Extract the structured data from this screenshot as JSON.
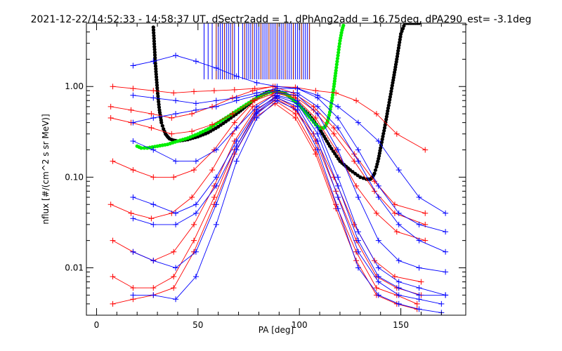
{
  "chart_data": {
    "type": "line",
    "title": "2021-12-22/14:52:33 - 14:58:37 UT, dSectr2add = 1, dPhAng2add = 16.75deg, dPA290_est=  -3.1deg",
    "xlabel": "PA [deg]",
    "ylabel": "nflux [#/(cm^2 s sr MeV)]",
    "xlim": [
      -5,
      182
    ],
    "ylim": [
      0.003,
      5
    ],
    "yscale": "log",
    "x_ticks": [
      0,
      50,
      100,
      150
    ],
    "x_tick_labels": [
      "0",
      "50",
      "100",
      "150"
    ],
    "y_ticks": [
      0.01,
      0.1,
      1.0
    ],
    "y_tick_labels": [
      "0.01",
      "0.10",
      "1.00"
    ],
    "grid": false,
    "colors": {
      "series_a": "#ff0000",
      "series_b": "#0000ff",
      "fit_black": "#000000",
      "fit_green": "#00ee00"
    },
    "vertical_markers": {
      "color_primary": "#0000ff",
      "color_secondary": "#8b0000",
      "y_from": 1.2,
      "y_to": 5,
      "x": [
        53,
        55,
        57,
        59,
        60,
        61,
        62,
        63,
        64,
        65,
        66,
        67,
        68,
        70,
        72,
        73,
        74,
        75,
        76,
        77,
        78,
        79,
        80,
        81,
        82,
        83,
        84,
        85,
        86,
        87,
        88,
        89,
        90,
        91,
        92,
        93,
        94,
        95,
        96,
        97,
        98,
        99,
        100,
        101,
        102,
        103,
        104,
        105
      ]
    },
    "series": [
      {
        "color": "#000000",
        "marker": "dot",
        "x": [
          28,
          29,
          30,
          31,
          32,
          33,
          34,
          35,
          36,
          38,
          40,
          45,
          50,
          55,
          60,
          65,
          70,
          75,
          80,
          85,
          88,
          90,
          93,
          95,
          100,
          105,
          110,
          115,
          120,
          125,
          130,
          133,
          135,
          136,
          137,
          138,
          139,
          140,
          142,
          144,
          146,
          148,
          150,
          152,
          154,
          156,
          158,
          160
        ],
        "values": [
          4.5,
          1.8,
          0.9,
          0.55,
          0.4,
          0.34,
          0.3,
          0.28,
          0.265,
          0.255,
          0.25,
          0.26,
          0.28,
          0.31,
          0.36,
          0.43,
          0.52,
          0.64,
          0.78,
          0.88,
          0.89,
          0.88,
          0.84,
          0.78,
          0.62,
          0.48,
          0.34,
          0.22,
          0.15,
          0.12,
          0.1,
          0.095,
          0.095,
          0.1,
          0.11,
          0.13,
          0.16,
          0.21,
          0.35,
          0.62,
          1.1,
          2.0,
          3.8,
          5.0,
          5.0,
          5.0,
          5.0,
          5.0
        ]
      },
      {
        "color": "#00ee00",
        "marker": "dot",
        "x": [
          20,
          22,
          25,
          30,
          35,
          40,
          45,
          50,
          55,
          60,
          65,
          70,
          75,
          80,
          85,
          88,
          90,
          93,
          95,
          100,
          105,
          108,
          110,
          112,
          113,
          114,
          115,
          116,
          117,
          118,
          119,
          120,
          121,
          122
        ],
        "values": [
          0.22,
          0.21,
          0.21,
          0.22,
          0.23,
          0.25,
          0.27,
          0.3,
          0.34,
          0.4,
          0.47,
          0.56,
          0.66,
          0.77,
          0.86,
          0.88,
          0.87,
          0.83,
          0.78,
          0.62,
          0.46,
          0.38,
          0.35,
          0.35,
          0.37,
          0.42,
          0.52,
          0.7,
          1.0,
          1.5,
          2.2,
          3.2,
          4.2,
          5.0
        ]
      },
      {
        "color": "#ff0000",
        "marker": "plus",
        "x": [
          8,
          18,
          28,
          38,
          48,
          58,
          68,
          78,
          88,
          98,
          108,
          118,
          128,
          138,
          148,
          162
        ],
        "values": [
          1.0,
          0.95,
          0.9,
          0.85,
          0.88,
          0.9,
          0.92,
          0.95,
          1.0,
          0.98,
          0.9,
          0.85,
          0.7,
          0.5,
          0.3,
          0.2
        ]
      },
      {
        "color": "#ff0000",
        "marker": "plus",
        "x": [
          7,
          17,
          27,
          37,
          47,
          57,
          67,
          77,
          87,
          97,
          107,
          117,
          127,
          137,
          147,
          162
        ],
        "values": [
          0.45,
          0.4,
          0.35,
          0.3,
          0.32,
          0.38,
          0.5,
          0.7,
          0.9,
          0.8,
          0.55,
          0.3,
          0.15,
          0.07,
          0.04,
          0.03
        ]
      },
      {
        "color": "#ff0000",
        "marker": "plus",
        "x": [
          8,
          18,
          28,
          38,
          48,
          58,
          68,
          78,
          88,
          98,
          108,
          118,
          128,
          138,
          148,
          162
        ],
        "values": [
          0.15,
          0.12,
          0.1,
          0.1,
          0.12,
          0.2,
          0.4,
          0.7,
          0.85,
          0.75,
          0.45,
          0.2,
          0.08,
          0.04,
          0.025,
          0.02
        ]
      },
      {
        "color": "#ff0000",
        "marker": "plus",
        "x": [
          7,
          17,
          27,
          37,
          47,
          57,
          67,
          77,
          87,
          97,
          107,
          117,
          127,
          137,
          147,
          160
        ],
        "values": [
          0.05,
          0.04,
          0.035,
          0.04,
          0.06,
          0.12,
          0.3,
          0.6,
          0.8,
          0.6,
          0.3,
          0.1,
          0.03,
          0.012,
          0.008,
          0.007
        ]
      },
      {
        "color": "#ff0000",
        "marker": "plus",
        "x": [
          8,
          18,
          28,
          38,
          48,
          58,
          68,
          78,
          88,
          98,
          108,
          118,
          128,
          138,
          148,
          160
        ],
        "values": [
          0.02,
          0.015,
          0.012,
          0.015,
          0.03,
          0.08,
          0.25,
          0.55,
          0.75,
          0.55,
          0.25,
          0.07,
          0.02,
          0.008,
          0.006,
          0.005
        ]
      },
      {
        "color": "#ff0000",
        "marker": "plus",
        "x": [
          8,
          18,
          28,
          38,
          48,
          58,
          68,
          78,
          88,
          98,
          108,
          118,
          128,
          138,
          148,
          158
        ],
        "values": [
          0.008,
          0.006,
          0.006,
          0.008,
          0.02,
          0.06,
          0.2,
          0.5,
          0.7,
          0.5,
          0.2,
          0.05,
          0.015,
          0.006,
          0.005,
          0.004
        ]
      },
      {
        "color": "#ff0000",
        "marker": "plus",
        "x": [
          8,
          18,
          28,
          38,
          48,
          58,
          68,
          78,
          88,
          98,
          108,
          118,
          128,
          138,
          148,
          158
        ],
        "values": [
          0.004,
          0.0045,
          0.005,
          0.006,
          0.015,
          0.05,
          0.18,
          0.45,
          0.65,
          0.45,
          0.18,
          0.045,
          0.012,
          0.005,
          0.004,
          0.0035
        ]
      },
      {
        "color": "#ff0000",
        "marker": "plus",
        "x": [
          7,
          17,
          27,
          37,
          47,
          57,
          67,
          77,
          87,
          97,
          107,
          117,
          127,
          137,
          147,
          162
        ],
        "values": [
          0.6,
          0.55,
          0.5,
          0.45,
          0.5,
          0.6,
          0.75,
          0.9,
          1.0,
          0.85,
          0.6,
          0.35,
          0.18,
          0.09,
          0.05,
          0.04
        ]
      },
      {
        "color": "#0000ff",
        "marker": "plus",
        "x": [
          18,
          28,
          39,
          49,
          59,
          69,
          79,
          89,
          99,
          109,
          119,
          129,
          139,
          149,
          159,
          172
        ],
        "values": [
          1.7,
          1.9,
          2.2,
          1.9,
          1.6,
          1.3,
          1.1,
          1.0,
          0.95,
          0.8,
          0.6,
          0.4,
          0.25,
          0.12,
          0.06,
          0.04
        ]
      },
      {
        "color": "#0000ff",
        "marker": "plus",
        "x": [
          18,
          28,
          39,
          49,
          59,
          69,
          79,
          89,
          99,
          109,
          119,
          129,
          139,
          149,
          159,
          172
        ],
        "values": [
          0.8,
          0.75,
          0.7,
          0.65,
          0.7,
          0.75,
          0.85,
          0.95,
          0.95,
          0.75,
          0.45,
          0.2,
          0.08,
          0.04,
          0.03,
          0.025
        ]
      },
      {
        "color": "#0000ff",
        "marker": "plus",
        "x": [
          18,
          28,
          39,
          49,
          59,
          69,
          79,
          89,
          99,
          109,
          119,
          129,
          139,
          149,
          159,
          172
        ],
        "values": [
          0.25,
          0.2,
          0.15,
          0.15,
          0.2,
          0.35,
          0.6,
          0.85,
          0.8,
          0.5,
          0.2,
          0.06,
          0.02,
          0.012,
          0.01,
          0.009
        ]
      },
      {
        "color": "#0000ff",
        "marker": "plus",
        "x": [
          18,
          28,
          39,
          49,
          59,
          69,
          79,
          89,
          99,
          109,
          119,
          129,
          139,
          149,
          159,
          172
        ],
        "values": [
          0.06,
          0.05,
          0.04,
          0.05,
          0.1,
          0.25,
          0.55,
          0.8,
          0.7,
          0.35,
          0.1,
          0.025,
          0.01,
          0.007,
          0.006,
          0.005
        ]
      },
      {
        "color": "#0000ff",
        "marker": "plus",
        "x": [
          18,
          28,
          39,
          49,
          59,
          69,
          79,
          89,
          99,
          109,
          119,
          129,
          139,
          149,
          159,
          170
        ],
        "values": [
          0.015,
          0.012,
          0.01,
          0.015,
          0.05,
          0.2,
          0.5,
          0.75,
          0.6,
          0.25,
          0.06,
          0.015,
          0.007,
          0.005,
          0.0045,
          0.004
        ]
      },
      {
        "color": "#0000ff",
        "marker": "plus",
        "x": [
          18,
          28,
          39,
          49,
          59,
          69,
          79,
          89,
          99,
          109,
          119,
          129,
          139,
          149,
          159,
          170
        ],
        "values": [
          0.005,
          0.005,
          0.0045,
          0.008,
          0.03,
          0.15,
          0.45,
          0.7,
          0.55,
          0.2,
          0.045,
          0.01,
          0.005,
          0.004,
          0.0035,
          0.0032
        ]
      },
      {
        "color": "#0000ff",
        "marker": "plus",
        "x": [
          18,
          28,
          39,
          49,
          59,
          69,
          79,
          89,
          99,
          109,
          119,
          129,
          139,
          149,
          159,
          172
        ],
        "values": [
          0.4,
          0.45,
          0.5,
          0.55,
          0.6,
          0.7,
          0.8,
          0.9,
          0.85,
          0.6,
          0.35,
          0.15,
          0.06,
          0.03,
          0.02,
          0.015
        ]
      },
      {
        "color": "#0000ff",
        "marker": "plus",
        "x": [
          18,
          28,
          39,
          49,
          59,
          69,
          79,
          89,
          99,
          109,
          119,
          129,
          139,
          149,
          159,
          172
        ],
        "values": [
          0.035,
          0.03,
          0.03,
          0.04,
          0.08,
          0.22,
          0.52,
          0.78,
          0.65,
          0.3,
          0.08,
          0.02,
          0.008,
          0.006,
          0.005,
          0.005
        ]
      }
    ]
  }
}
